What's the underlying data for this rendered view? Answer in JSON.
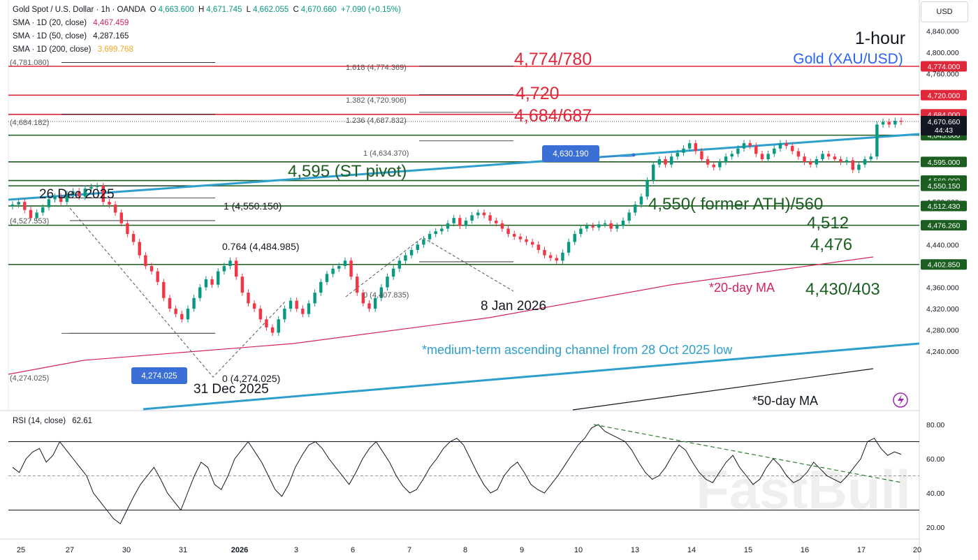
{
  "header": {
    "symbol": "Gold Spot / U.S. Dollar · 1h · OANDA",
    "open_label": "O",
    "open": "4,663.600",
    "high_label": "H",
    "high": "4,671.745",
    "low_label": "L",
    "low": "4,662.055",
    "close_label": "C",
    "close": "4,670.660",
    "change": "+7.090 (+0.15%)",
    "sma20_label": "SMA · 1D (20, close)",
    "sma20": "4,467.459",
    "sma50_label": "SMA · 1D (50, close)",
    "sma50": "4,287.165",
    "sma200_label": "SMA · 1D (200, close)",
    "sma200": "3,699.768"
  },
  "currency": "USD",
  "colors": {
    "up": "#089981",
    "down": "#f23645",
    "resistance": "#e0283a",
    "support": "#1b5e20",
    "channel": "#2e9fcd",
    "ma20": "#d4245b",
    "ma50": "#131722",
    "title_blue": "#2962ff",
    "rsi": "#131722"
  },
  "chart_data": {
    "type": "candlestick",
    "title": "1-hour",
    "subtitle": "Gold (XAU/USD)",
    "x_ticks": [
      "25",
      "27",
      "30",
      "31",
      "2026",
      "3",
      "6",
      "7",
      "8",
      "9",
      "10",
      "13",
      "14",
      "15",
      "16",
      "17",
      "20"
    ],
    "y_ticks": [
      "4,840.000",
      "4,800.000",
      "4,760.000",
      "4,520.000",
      "4,440.000",
      "4,400.000",
      "4,360.000",
      "4,320.000",
      "4,280.000",
      "4,240.000"
    ],
    "ylim": [
      4222,
      4850
    ],
    "price_levels": [
      {
        "value": 4774,
        "label": "4,774.000",
        "kind": "resistance"
      },
      {
        "value": 4720,
        "label": "4,720.000",
        "kind": "resistance"
      },
      {
        "value": 4684,
        "label": "4,684.000",
        "kind": "resistance"
      },
      {
        "value": 4645,
        "label": "4,645.000",
        "kind": "support"
      },
      {
        "value": 4595,
        "label": "4,595.000",
        "kind": "support"
      },
      {
        "value": 4560,
        "label": "4,560.000",
        "kind": "support"
      },
      {
        "value": 4550.15,
        "label": "4,550.150",
        "kind": "support"
      },
      {
        "value": 4512.43,
        "label": "4,512.430",
        "kind": "support"
      },
      {
        "value": 4476.26,
        "label": "4,476.260",
        "kind": "support"
      },
      {
        "value": 4402.85,
        "label": "4,402.850",
        "kind": "support"
      }
    ],
    "last_price": {
      "value": 4670.66,
      "label": "4,670.660",
      "countdown": "44:43"
    },
    "fib_left": [
      {
        "value": 4781.08,
        "label": "(4,781.080)"
      },
      {
        "value": 4684.182,
        "label": "(4,684.182)"
      },
      {
        "value": 4527.553,
        "label": "(4,527.553)"
      },
      {
        "value": 4274.025,
        "label": "(4,274.025)"
      }
    ],
    "fib_ratios": [
      {
        "value": 4774.369,
        "label": "1.618 (4,774.369)"
      },
      {
        "value": 4720.906,
        "label": "1.382 (4,720.906)"
      },
      {
        "value": 4687.832,
        "label": "1.236 (4,687.832)"
      },
      {
        "value": 4634.37,
        "label": "1 (4,634.370)"
      }
    ],
    "fib_mid": [
      {
        "value": 4550.15,
        "label": "1 (4,550.150)"
      },
      {
        "value": 4484.985,
        "label": "0.764 (4,484.985)"
      },
      {
        "value": 4274.025,
        "label": "0 (4,274.025)"
      },
      {
        "value": 4407.835,
        "label": "0 (4,407.835)"
      }
    ],
    "badges": [
      {
        "value": 4630.19,
        "label": "4,630.190"
      },
      {
        "value": 4274.025,
        "label": "4,274.025"
      }
    ],
    "annotations": {
      "r1": "4,774/780",
      "r2": "4,720",
      "r3": "4,684/687",
      "pivot": "4,595 (ST pivot)",
      "former_ath": "4,550( former ATH)/560",
      "s2": "4,512",
      "s3": "4,476",
      "s4": "4,430/403",
      "ma20": "*20-day MA",
      "ma50": "*50-day MA",
      "channel": "*medium-term ascending channel from 28 Oct 2025 low",
      "d1": "26 Dec 2025",
      "d2": "31 Dec 2025",
      "d3": "8 Jan 2026"
    },
    "series_close": [
      4515,
      4520,
      4505,
      4490,
      4500,
      4510,
      4525,
      4530,
      4520,
      4535,
      4540,
      4530,
      4545,
      4548,
      4550,
      4520,
      4515,
      4500,
      4480,
      4460,
      4445,
      4420,
      4400,
      4390,
      4370,
      4340,
      4320,
      4310,
      4300,
      4320,
      4340,
      4360,
      4375,
      4365,
      4390,
      4400,
      4410,
      4380,
      4350,
      4330,
      4320,
      4300,
      4285,
      4275,
      4300,
      4320,
      4335,
      4320,
      4310,
      4330,
      4350,
      4370,
      4385,
      4395,
      4400,
      4410,
      4380,
      4350,
      4330,
      4320,
      4340,
      4360,
      4380,
      4395,
      4410,
      4420,
      4430,
      4440,
      4450,
      4460,
      4465,
      4470,
      4480,
      4490,
      4475,
      4485,
      4495,
      4500,
      4495,
      4485,
      4480,
      4470,
      4460,
      4455,
      4450,
      4445,
      4440,
      4430,
      4420,
      4415,
      4410,
      4425,
      4445,
      4460,
      4470,
      4475,
      4472,
      4478,
      4480,
      4470,
      4475,
      4485,
      4500,
      4515,
      4530,
      4560,
      4590,
      4600,
      4590,
      4605,
      4612,
      4620,
      4630,
      4615,
      4600,
      4590,
      4585,
      4595,
      4605,
      4610,
      4620,
      4630,
      4625,
      4610,
      4600,
      4610,
      4620,
      4630,
      4625,
      4615,
      4605,
      4595,
      4590,
      4600,
      4610,
      4605,
      4600,
      4595,
      4598,
      4580,
      4590,
      4600,
      4605,
      4665,
      4670,
      4665,
      4672,
      4670
    ],
    "rsi": {
      "label": "RSI (14, close)",
      "value": "62.61",
      "ticks": [
        "80.00",
        "60.00",
        "40.00",
        "20.00"
      ],
      "levels": [
        70,
        50,
        30
      ],
      "values": [
        55,
        52,
        60,
        64,
        66,
        58,
        62,
        70,
        65,
        60,
        55,
        50,
        40,
        35,
        30,
        25,
        22,
        30,
        38,
        45,
        50,
        55,
        48,
        40,
        35,
        30,
        40,
        50,
        58,
        55,
        45,
        42,
        50,
        60,
        65,
        70,
        64,
        58,
        50,
        42,
        38,
        45,
        55,
        62,
        68,
        70,
        66,
        60,
        55,
        50,
        45,
        52,
        60,
        66,
        70,
        64,
        58,
        50,
        44,
        40,
        42,
        48,
        55,
        60,
        66,
        70,
        72,
        68,
        60,
        52,
        45,
        40,
        42,
        50,
        55,
        58,
        52,
        45,
        42,
        40,
        45,
        50,
        56,
        62,
        68,
        72,
        78,
        80,
        76,
        74,
        72,
        70,
        65,
        58,
        52,
        48,
        50,
        55,
        62,
        68,
        65,
        58,
        52,
        48,
        46,
        52,
        58,
        62,
        55,
        50,
        45,
        48,
        55,
        60,
        56,
        50,
        46,
        48,
        52,
        58,
        54,
        50,
        48,
        46,
        50,
        55,
        60,
        70,
        72,
        66,
        62,
        64,
        62.6
      ]
    }
  },
  "watermark": "FastBull"
}
